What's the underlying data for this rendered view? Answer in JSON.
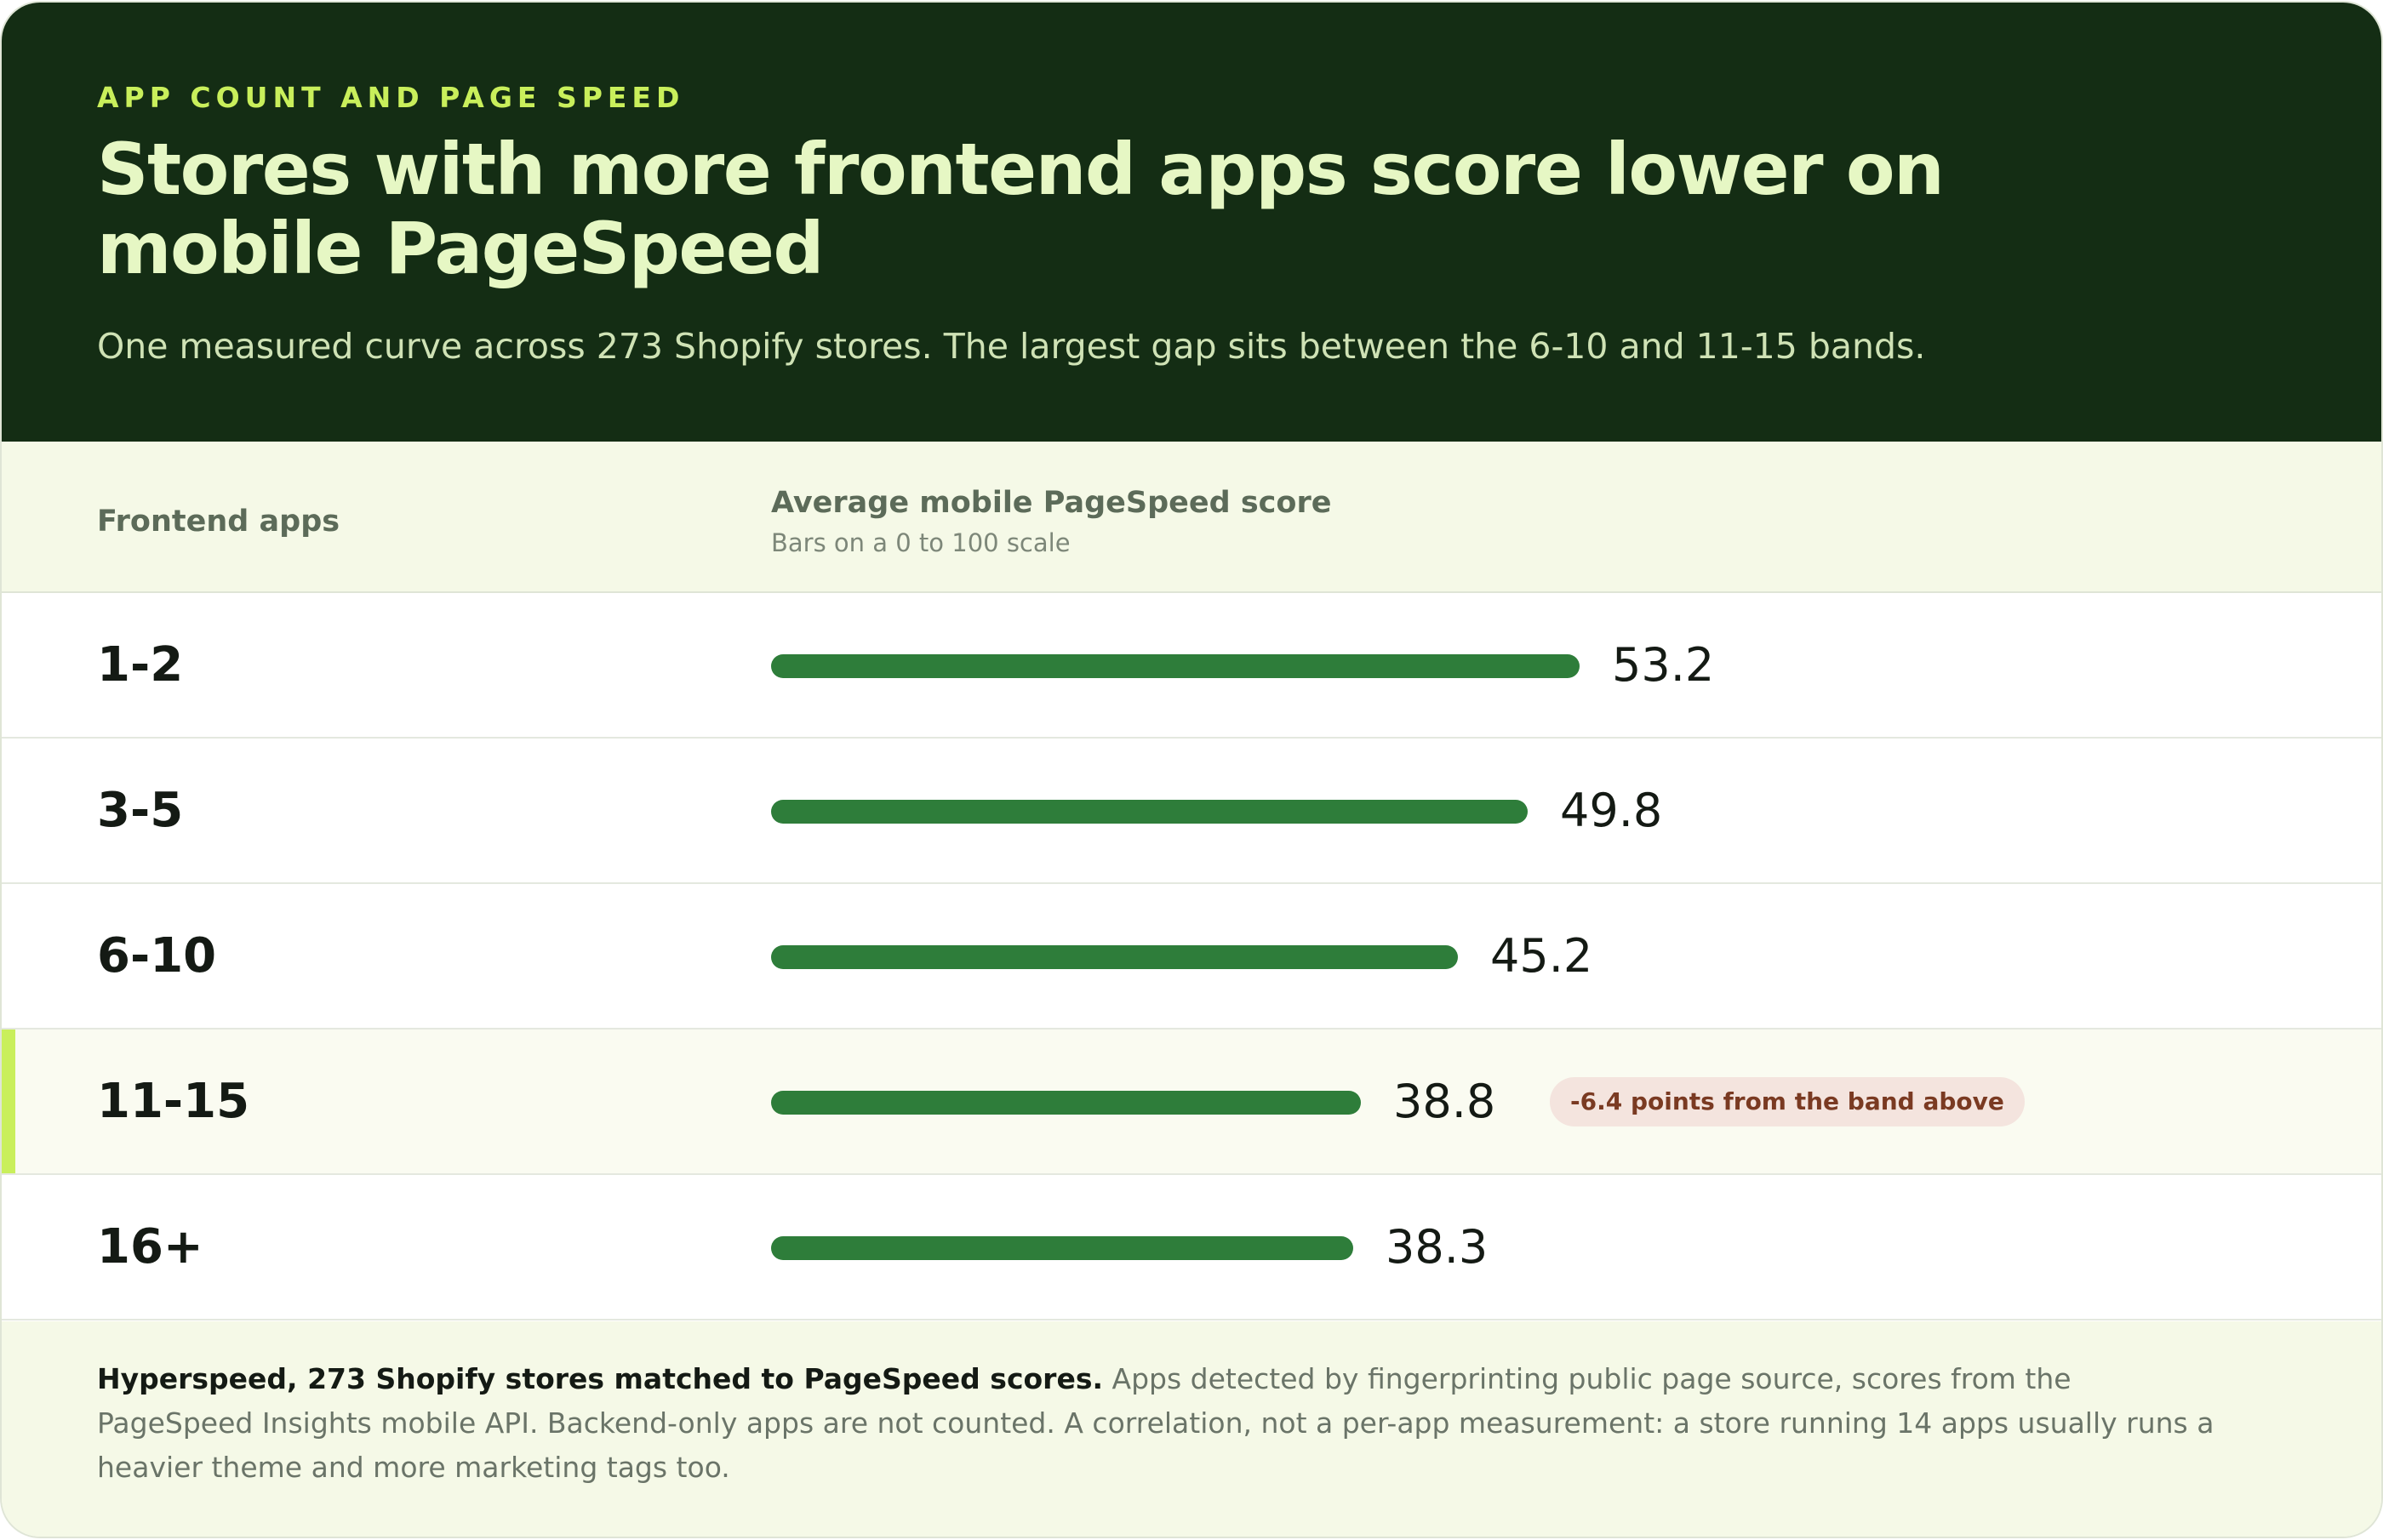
{
  "header": {
    "eyebrow": "App count and page speed",
    "title": "Stores with more frontend apps score lower on mobile PageSpeed",
    "subtitle": "One measured curve across 273 Shopify stores. The largest gap sits between the 6-10 and 11-15 bands."
  },
  "table_head": {
    "left": "Frontend apps",
    "right": "Average mobile PageSpeed score",
    "note": "Bars on a 0 to 100 scale"
  },
  "chart_data": {
    "type": "bar",
    "orientation": "horizontal",
    "categories": [
      "1-2",
      "3-5",
      "6-10",
      "11-15",
      "16+"
    ],
    "values": [
      53.2,
      49.8,
      45.2,
      38.8,
      38.3
    ],
    "value_labels": [
      "53.2",
      "49.8",
      "45.2",
      "38.8",
      "38.3"
    ],
    "xlim": [
      0,
      100
    ],
    "highlight_category": "11-15",
    "annotations": [
      {
        "category": "11-15",
        "text": "-6.4 points from the band above"
      }
    ],
    "colors": {
      "bar": "#2e7d3a",
      "highlight_accent": "#c9ef5b"
    }
  },
  "footer": {
    "source": "Hyperspeed, 273 Shopify stores matched to PageSpeed scores.",
    "note": "Apps detected by fingerprinting public page source, scores from the PageSpeed Insights mobile API. Backend-only apps are not counted. A correlation, not a per-app measurement: a store running 14 apps usually runs a heavier theme and more marketing tags too."
  },
  "colors": {
    "hero_background": "#142d14",
    "eyebrow": "#c9ef5b",
    "title": "#e6f7c4",
    "panel_background": "#f5f9e7",
    "callout_background": "#f4e4de",
    "callout_text": "#7a3a22"
  }
}
